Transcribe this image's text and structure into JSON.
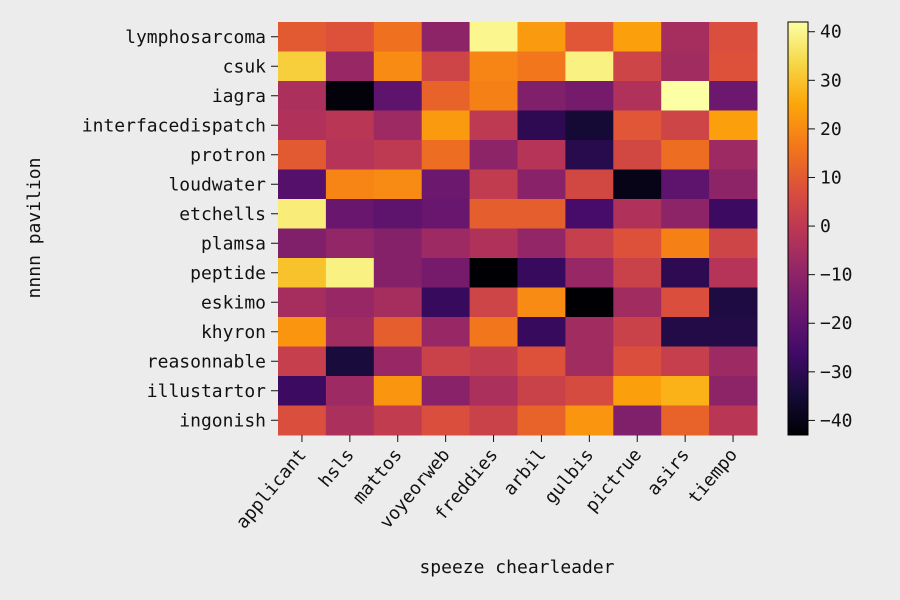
{
  "chart_data": {
    "type": "heatmap",
    "xlabel": "speeze chearleader",
    "ylabel": "nnnn pavilion",
    "x_categories": [
      "applicant",
      "hsls",
      "mattos",
      "voyeorweb",
      "freddies",
      "arbil",
      "gulbis",
      "pictrue",
      "asirs",
      "tiempo"
    ],
    "y_categories": [
      "lymphosarcoma",
      "csuk",
      "iagra",
      "interfacedispatch",
      "protron",
      "loudwater",
      "etchells",
      "plamsa",
      "peptide",
      "eskimo",
      "khyron",
      "reasonnable",
      "illustartor",
      "ingonish"
    ],
    "values": [
      [
        10,
        8,
        15,
        -10,
        40,
        23,
        9,
        24,
        -5,
        7
      ],
      [
        32,
        -8,
        20,
        4,
        19,
        16,
        39,
        4,
        -6,
        8
      ],
      [
        -4,
        -42,
        -20,
        12,
        18,
        -13,
        -15,
        -3,
        42,
        -17
      ],
      [
        -3,
        -1,
        -7,
        23,
        0,
        -30,
        -35,
        9,
        4,
        24
      ],
      [
        10,
        -2,
        0,
        14,
        -10,
        -2,
        -31,
        5,
        14,
        -7
      ],
      [
        -22,
        19,
        20,
        -17,
        1,
        -11,
        5,
        -40,
        -20,
        -10
      ],
      [
        38,
        -18,
        -20,
        -18,
        11,
        11,
        -25,
        -3,
        -10,
        -27
      ],
      [
        -13,
        -9,
        -12,
        -7,
        -3,
        -9,
        2,
        8,
        18,
        4
      ],
      [
        30,
        39,
        -12,
        -15,
        -43,
        -28,
        -8,
        3,
        -30,
        -2
      ],
      [
        -5,
        -8,
        -5,
        -28,
        4,
        20,
        -43,
        -6,
        7,
        -33
      ],
      [
        22,
        -6,
        11,
        -8,
        16,
        -28,
        -6,
        3,
        -32,
        -32
      ],
      [
        2,
        -34,
        -8,
        3,
        1,
        8,
        -6,
        7,
        2,
        -7
      ],
      [
        -27,
        -7,
        22,
        -11,
        -4,
        3,
        6,
        24,
        27,
        -10
      ],
      [
        7,
        -4,
        1,
        7,
        3,
        12,
        22,
        -13,
        12,
        -1
      ]
    ],
    "vmin": -43,
    "vmax": 42,
    "colormap": "inferno",
    "colorbar_ticks": [
      40,
      30,
      20,
      10,
      0,
      -10,
      -20,
      -30,
      -40
    ],
    "colorbar_tick_labels": [
      "40",
      "30",
      "20",
      "10",
      "0",
      "−10",
      "−20",
      "−30",
      "−40"
    ],
    "colors": {
      "background": "#ececec"
    }
  }
}
